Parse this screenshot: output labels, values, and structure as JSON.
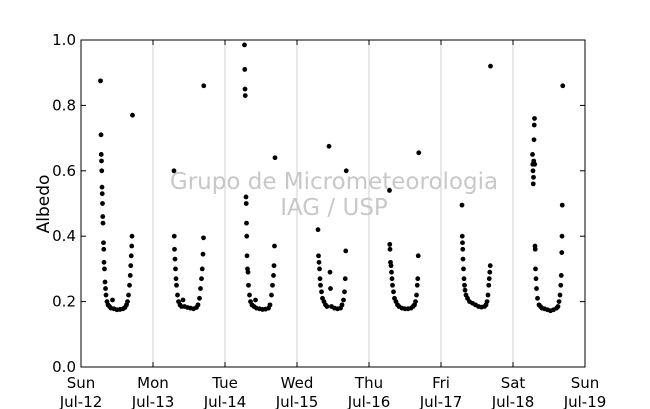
{
  "chart_data": {
    "type": "scatter",
    "ylabel": "Albedo",
    "xlabel": "",
    "ylim": [
      0.0,
      1.0
    ],
    "yticks": [
      0.0,
      0.2,
      0.4,
      0.6,
      0.8,
      1.0
    ],
    "ytick_labels": [
      "0.0",
      "0.2",
      "0.4",
      "0.6",
      "0.8",
      "1.0"
    ],
    "xlim": [
      "2015-07-12",
      "2015-07-19"
    ],
    "xticks": [
      {
        "day": "Sun",
        "date": "Jul-12"
      },
      {
        "day": "Mon",
        "date": "Jul-13"
      },
      {
        "day": "Tue",
        "date": "Jul-14"
      },
      {
        "day": "Wed",
        "date": "Jul-15"
      },
      {
        "day": "Thu",
        "date": "Jul-16"
      },
      {
        "day": "Fri",
        "date": "Jul-17"
      },
      {
        "day": "Sat",
        "date": "Jul-18"
      },
      {
        "day": "Sun",
        "date": "Jul-19"
      }
    ],
    "grid": "vertical",
    "marker_color": "#000000",
    "watermark": [
      "Grupo de Micrometeorologia",
      "IAG / USP"
    ],
    "series": [
      {
        "points": [
          [
            "2015-07-12 06:30",
            0.875
          ],
          [
            "2015-07-12 06:40",
            0.71
          ],
          [
            "2015-07-12 06:45",
            0.65
          ],
          [
            "2015-07-12 06:50",
            0.63
          ],
          [
            "2015-07-12 06:55",
            0.6
          ],
          [
            "2015-07-12 07:00",
            0.55
          ],
          [
            "2015-07-12 07:05",
            0.53
          ],
          [
            "2015-07-12 07:10",
            0.5
          ],
          [
            "2015-07-12 07:15",
            0.46
          ],
          [
            "2015-07-12 07:20",
            0.44
          ],
          [
            "2015-07-12 07:30",
            0.38
          ],
          [
            "2015-07-12 07:35",
            0.36
          ],
          [
            "2015-07-12 07:40",
            0.32
          ],
          [
            "2015-07-12 07:50",
            0.3
          ],
          [
            "2015-07-12 08:00",
            0.26
          ],
          [
            "2015-07-12 08:10",
            0.24
          ],
          [
            "2015-07-12 08:20",
            0.22
          ],
          [
            "2015-07-12 08:40",
            0.2
          ],
          [
            "2015-07-12 09:00",
            0.19
          ],
          [
            "2015-07-12 09:30",
            0.185
          ],
          [
            "2015-07-12 10:00",
            0.18
          ],
          [
            "2015-07-12 10:30",
            0.205
          ],
          [
            "2015-07-12 11:00",
            0.178
          ],
          [
            "2015-07-12 12:00",
            0.175
          ],
          [
            "2015-07-12 13:00",
            0.176
          ],
          [
            "2015-07-12 14:00",
            0.178
          ],
          [
            "2015-07-12 14:40",
            0.182
          ],
          [
            "2015-07-12 15:10",
            0.19
          ],
          [
            "2015-07-12 15:30",
            0.2
          ],
          [
            "2015-07-12 15:50",
            0.22
          ],
          [
            "2015-07-12 16:10",
            0.25
          ],
          [
            "2015-07-12 16:25",
            0.28
          ],
          [
            "2015-07-12 16:35",
            0.31
          ],
          [
            "2015-07-12 16:45",
            0.34
          ],
          [
            "2015-07-12 16:55",
            0.37
          ],
          [
            "2015-07-12 17:00",
            0.4
          ],
          [
            "2015-07-12 17:10",
            0.77
          ],
          [
            "2015-07-13 07:00",
            0.6
          ],
          [
            "2015-07-13 07:05",
            0.4
          ],
          [
            "2015-07-13 07:10",
            0.36
          ],
          [
            "2015-07-13 07:20",
            0.33
          ],
          [
            "2015-07-13 07:30",
            0.3
          ],
          [
            "2015-07-13 07:40",
            0.27
          ],
          [
            "2015-07-13 07:50",
            0.25
          ],
          [
            "2015-07-13 08:10",
            0.22
          ],
          [
            "2015-07-13 08:30",
            0.2
          ],
          [
            "2015-07-13 09:00",
            0.19
          ],
          [
            "2015-07-13 09:30",
            0.185
          ],
          [
            "2015-07-13 10:00",
            0.205
          ],
          [
            "2015-07-13 10:30",
            0.185
          ],
          [
            "2015-07-13 11:30",
            0.182
          ],
          [
            "2015-07-13 12:30",
            0.18
          ],
          [
            "2015-07-13 13:30",
            0.178
          ],
          [
            "2015-07-13 14:30",
            0.182
          ],
          [
            "2015-07-13 15:00",
            0.19
          ],
          [
            "2015-07-13 15:30",
            0.21
          ],
          [
            "2015-07-13 15:50",
            0.24
          ],
          [
            "2015-07-13 16:10",
            0.27
          ],
          [
            "2015-07-13 16:25",
            0.3
          ],
          [
            "2015-07-13 16:40",
            0.345
          ],
          [
            "2015-07-13 16:50",
            0.395
          ],
          [
            "2015-07-13 16:55",
            0.86
          ],
          [
            "2015-07-14 06:30",
            0.985
          ],
          [
            "2015-07-14 06:35",
            0.91
          ],
          [
            "2015-07-14 06:40",
            0.85
          ],
          [
            "2015-07-14 06:45",
            0.83
          ],
          [
            "2015-07-14 07:00",
            0.52
          ],
          [
            "2015-07-14 07:05",
            0.5
          ],
          [
            "2015-07-14 07:10",
            0.44
          ],
          [
            "2015-07-14 07:15",
            0.4
          ],
          [
            "2015-07-14 07:20",
            0.34
          ],
          [
            "2015-07-14 07:30",
            0.3
          ],
          [
            "2015-07-14 07:40",
            0.29
          ],
          [
            "2015-07-14 07:50",
            0.25
          ],
          [
            "2015-07-14 08:10",
            0.22
          ],
          [
            "2015-07-14 08:30",
            0.2
          ],
          [
            "2015-07-14 09:00",
            0.19
          ],
          [
            "2015-07-14 09:40",
            0.185
          ],
          [
            "2015-07-14 10:10",
            0.205
          ],
          [
            "2015-07-14 10:30",
            0.18
          ],
          [
            "2015-07-14 11:30",
            0.178
          ],
          [
            "2015-07-14 12:30",
            0.176
          ],
          [
            "2015-07-14 13:30",
            0.177
          ],
          [
            "2015-07-14 14:30",
            0.18
          ],
          [
            "2015-07-14 15:00",
            0.19
          ],
          [
            "2015-07-14 15:30",
            0.22
          ],
          [
            "2015-07-14 15:50",
            0.25
          ],
          [
            "2015-07-14 16:10",
            0.28
          ],
          [
            "2015-07-14 16:20",
            0.31
          ],
          [
            "2015-07-14 16:30",
            0.37
          ],
          [
            "2015-07-14 16:40",
            0.64
          ],
          [
            "2015-07-15 07:00",
            0.42
          ],
          [
            "2015-07-15 07:10",
            0.34
          ],
          [
            "2015-07-15 07:20",
            0.32
          ],
          [
            "2015-07-15 07:30",
            0.3
          ],
          [
            "2015-07-15 07:40",
            0.27
          ],
          [
            "2015-07-15 07:50",
            0.25
          ],
          [
            "2015-07-15 08:10",
            0.23
          ],
          [
            "2015-07-15 08:30",
            0.21
          ],
          [
            "2015-07-15 09:00",
            0.2
          ],
          [
            "2015-07-15 09:30",
            0.19
          ],
          [
            "2015-07-15 10:00",
            0.185
          ],
          [
            "2015-07-15 10:40",
            0.675
          ],
          [
            "2015-07-15 11:00",
            0.29
          ],
          [
            "2015-07-15 11:10",
            0.24
          ],
          [
            "2015-07-15 11:30",
            0.185
          ],
          [
            "2015-07-15 12:30",
            0.18
          ],
          [
            "2015-07-15 13:30",
            0.178
          ],
          [
            "2015-07-15 14:30",
            0.18
          ],
          [
            "2015-07-15 15:00",
            0.19
          ],
          [
            "2015-07-15 15:30",
            0.205
          ],
          [
            "2015-07-15 15:50",
            0.23
          ],
          [
            "2015-07-15 16:05",
            0.27
          ],
          [
            "2015-07-15 16:15",
            0.355
          ],
          [
            "2015-07-15 16:25",
            0.6
          ],
          [
            "2015-07-16 06:50",
            0.54
          ],
          [
            "2015-07-16 06:55",
            0.375
          ],
          [
            "2015-07-16 07:00",
            0.36
          ],
          [
            "2015-07-16 07:10",
            0.32
          ],
          [
            "2015-07-16 07:20",
            0.31
          ],
          [
            "2015-07-16 07:30",
            0.29
          ],
          [
            "2015-07-16 07:40",
            0.27
          ],
          [
            "2015-07-16 07:50",
            0.25
          ],
          [
            "2015-07-16 08:10",
            0.23
          ],
          [
            "2015-07-16 08:30",
            0.21
          ],
          [
            "2015-07-16 09:00",
            0.2
          ],
          [
            "2015-07-16 09:30",
            0.19
          ],
          [
            "2015-07-16 10:00",
            0.185
          ],
          [
            "2015-07-16 11:00",
            0.18
          ],
          [
            "2015-07-16 12:00",
            0.178
          ],
          [
            "2015-07-16 13:00",
            0.178
          ],
          [
            "2015-07-16 14:00",
            0.18
          ],
          [
            "2015-07-16 14:40",
            0.185
          ],
          [
            "2015-07-16 15:10",
            0.19
          ],
          [
            "2015-07-16 15:30",
            0.2
          ],
          [
            "2015-07-16 15:50",
            0.22
          ],
          [
            "2015-07-16 16:05",
            0.25
          ],
          [
            "2015-07-16 16:15",
            0.27
          ],
          [
            "2015-07-16 16:25",
            0.34
          ],
          [
            "2015-07-16 16:35",
            0.655
          ],
          [
            "2015-07-17 07:00",
            0.495
          ],
          [
            "2015-07-17 07:05",
            0.4
          ],
          [
            "2015-07-17 07:10",
            0.38
          ],
          [
            "2015-07-17 07:15",
            0.36
          ],
          [
            "2015-07-17 07:20",
            0.33
          ],
          [
            "2015-07-17 07:30",
            0.3
          ],
          [
            "2015-07-17 07:40",
            0.27
          ],
          [
            "2015-07-17 07:50",
            0.25
          ],
          [
            "2015-07-17 08:00",
            0.235
          ],
          [
            "2015-07-17 08:20",
            0.22
          ],
          [
            "2015-07-17 08:50",
            0.21
          ],
          [
            "2015-07-17 09:30",
            0.2
          ],
          [
            "2015-07-17 10:30",
            0.195
          ],
          [
            "2015-07-17 11:30",
            0.19
          ],
          [
            "2015-07-17 12:30",
            0.185
          ],
          [
            "2015-07-17 13:30",
            0.183
          ],
          [
            "2015-07-17 14:30",
            0.185
          ],
          [
            "2015-07-17 15:00",
            0.19
          ],
          [
            "2015-07-17 15:20",
            0.2
          ],
          [
            "2015-07-17 15:40",
            0.22
          ],
          [
            "2015-07-17 15:55",
            0.25
          ],
          [
            "2015-07-17 16:05",
            0.27
          ],
          [
            "2015-07-17 16:15",
            0.29
          ],
          [
            "2015-07-17 16:25",
            0.31
          ],
          [
            "2015-07-17 16:30",
            0.92
          ],
          [
            "2015-07-18 06:30",
            0.65
          ],
          [
            "2015-07-18 06:35",
            0.62
          ],
          [
            "2015-07-18 06:40",
            0.6
          ],
          [
            "2015-07-18 06:45",
            0.56
          ],
          [
            "2015-07-18 06:50",
            0.58
          ],
          [
            "2015-07-18 06:55",
            0.63
          ],
          [
            "2015-07-18 07:00",
            0.695
          ],
          [
            "2015-07-18 07:05",
            0.74
          ],
          [
            "2015-07-18 07:10",
            0.76
          ],
          [
            "2015-07-18 07:15",
            0.62
          ],
          [
            "2015-07-18 07:20",
            0.37
          ],
          [
            "2015-07-18 07:25",
            0.36
          ],
          [
            "2015-07-18 07:30",
            0.3
          ],
          [
            "2015-07-18 07:40",
            0.27
          ],
          [
            "2015-07-18 07:50",
            0.24
          ],
          [
            "2015-07-18 08:10",
            0.21
          ],
          [
            "2015-07-18 08:40",
            0.19
          ],
          [
            "2015-07-18 09:10",
            0.185
          ],
          [
            "2015-07-18 09:40",
            0.18
          ],
          [
            "2015-07-18 10:30",
            0.178
          ],
          [
            "2015-07-18 11:30",
            0.175
          ],
          [
            "2015-07-18 12:30",
            0.172
          ],
          [
            "2015-07-18 13:30",
            0.175
          ],
          [
            "2015-07-18 14:30",
            0.18
          ],
          [
            "2015-07-18 15:00",
            0.185
          ],
          [
            "2015-07-18 15:20",
            0.2
          ],
          [
            "2015-07-18 15:40",
            0.22
          ],
          [
            "2015-07-18 15:55",
            0.25
          ],
          [
            "2015-07-18 16:05",
            0.28
          ],
          [
            "2015-07-18 16:15",
            0.35
          ],
          [
            "2015-07-18 16:20",
            0.4
          ],
          [
            "2015-07-18 16:25",
            0.495
          ],
          [
            "2015-07-18 16:35",
            0.86
          ]
        ]
      }
    ]
  }
}
